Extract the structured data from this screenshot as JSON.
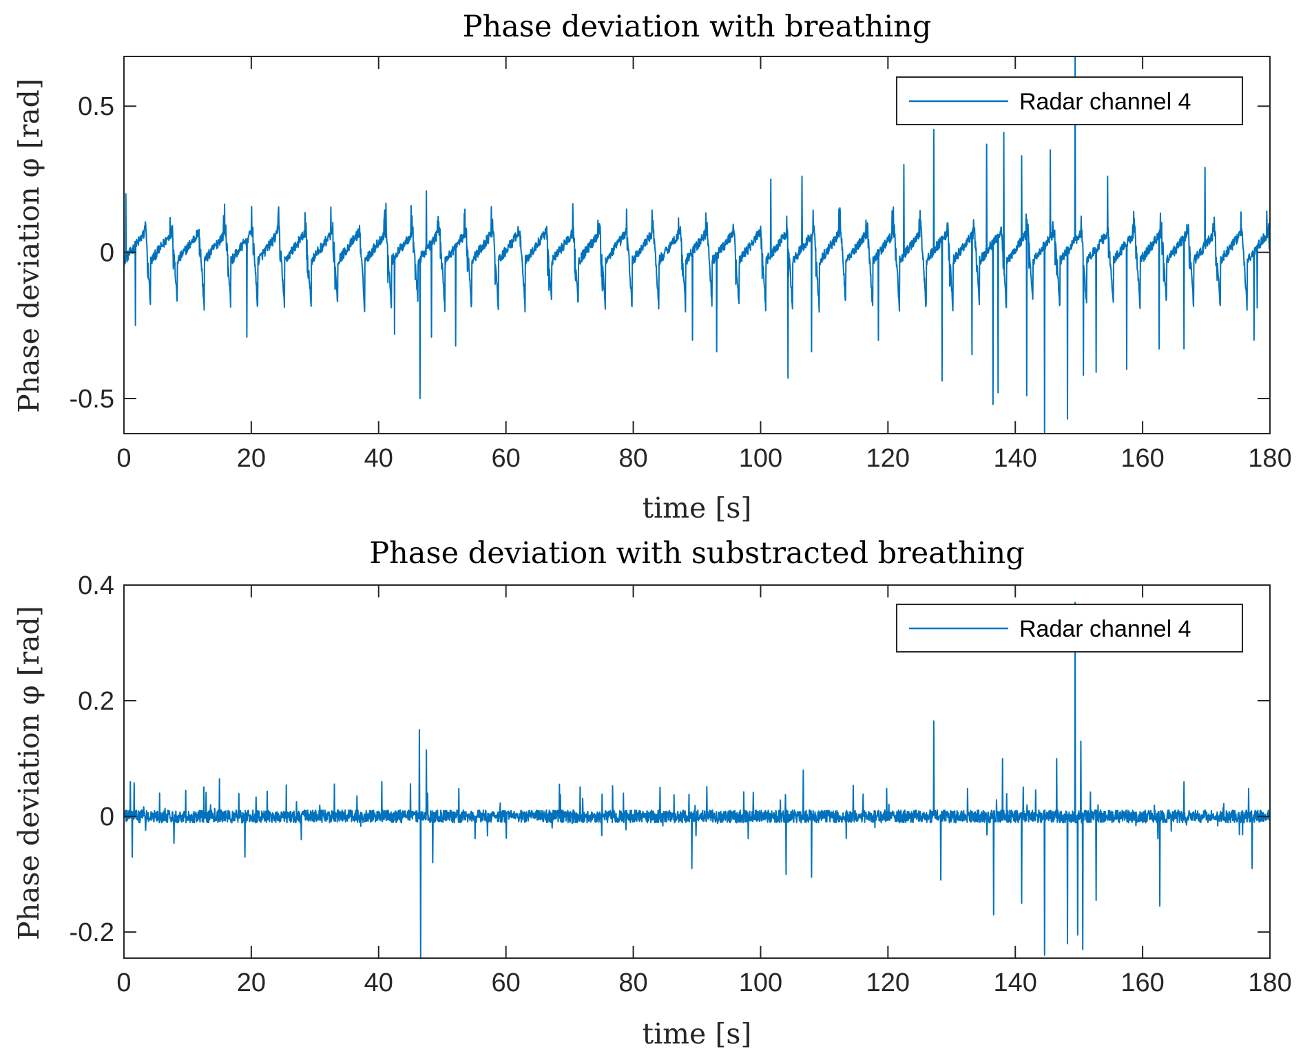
{
  "chart_data": [
    {
      "type": "line",
      "title": "Phase deviation with breathing",
      "xlabel": "time [s]",
      "ylabel": "Phase deviation φ [rad]",
      "xlim": [
        0,
        180
      ],
      "ylim": [
        -0.62,
        0.67
      ],
      "xticks": [
        0,
        20,
        40,
        60,
        80,
        100,
        120,
        140,
        160,
        180
      ],
      "xtick_labels": [
        "0",
        "20",
        "40",
        "60",
        "80",
        "100",
        "120",
        "140",
        "160",
        "180"
      ],
      "yticks": [
        -0.5,
        0,
        0.5
      ],
      "ytick_labels": [
        "-0.5",
        "0",
        "0.5"
      ],
      "grid": false,
      "legend_position": "top-right",
      "series": [
        {
          "name": "Radar channel 4",
          "color": "#0072BD",
          "cycle_period_s": 4.2,
          "breathing_amplitude_rad": 0.11,
          "spikes": [
            {
              "t": 0.3,
              "v": 0.2
            },
            {
              "t": 1.8,
              "v": -0.25
            },
            {
              "t": 19.3,
              "v": -0.29
            },
            {
              "t": 42.5,
              "v": -0.28
            },
            {
              "t": 46.5,
              "v": -0.5
            },
            {
              "t": 47.5,
              "v": 0.21
            },
            {
              "t": 48.3,
              "v": -0.29
            },
            {
              "t": 52.1,
              "v": -0.32
            },
            {
              "t": 89.3,
              "v": -0.3
            },
            {
              "t": 93.1,
              "v": -0.34
            },
            {
              "t": 101.6,
              "v": 0.25
            },
            {
              "t": 104.3,
              "v": -0.43
            },
            {
              "t": 106.5,
              "v": 0.26
            },
            {
              "t": 108.0,
              "v": -0.34
            },
            {
              "t": 118.5,
              "v": -0.3
            },
            {
              "t": 122.5,
              "v": 0.3
            },
            {
              "t": 127.2,
              "v": 0.42
            },
            {
              "t": 128.5,
              "v": -0.44
            },
            {
              "t": 133.2,
              "v": -0.35
            },
            {
              "t": 135.5,
              "v": 0.37
            },
            {
              "t": 136.5,
              "v": -0.52
            },
            {
              "t": 137.3,
              "v": -0.48
            },
            {
              "t": 138.2,
              "v": 0.41
            },
            {
              "t": 141.0,
              "v": 0.33
            },
            {
              "t": 141.8,
              "v": -0.49
            },
            {
              "t": 144.6,
              "v": -0.62
            },
            {
              "t": 145.5,
              "v": 0.35
            },
            {
              "t": 148.2,
              "v": -0.57
            },
            {
              "t": 149.4,
              "v": 0.67
            },
            {
              "t": 150.7,
              "v": -0.42
            },
            {
              "t": 152.7,
              "v": -0.41
            },
            {
              "t": 154.5,
              "v": 0.26
            },
            {
              "t": 157.5,
              "v": -0.4
            },
            {
              "t": 162.6,
              "v": -0.33
            },
            {
              "t": 166.5,
              "v": -0.33
            },
            {
              "t": 169.8,
              "v": 0.29
            },
            {
              "t": 177.5,
              "v": -0.3
            },
            {
              "t": 178.0,
              "v": -0.19
            }
          ]
        }
      ]
    },
    {
      "type": "line",
      "title": "Phase deviation with substracted breathing",
      "xlabel": "time [s]",
      "ylabel": "Phase deviation φ [rad]",
      "xlim": [
        0,
        180
      ],
      "ylim": [
        -0.245,
        0.4
      ],
      "xticks": [
        0,
        20,
        40,
        60,
        80,
        100,
        120,
        140,
        160,
        180
      ],
      "xtick_labels": [
        "0",
        "20",
        "40",
        "60",
        "80",
        "100",
        "120",
        "140",
        "160",
        "180"
      ],
      "yticks": [
        -0.2,
        0,
        0.2,
        0.4
      ],
      "ytick_labels": [
        "-0.2",
        "0",
        "0.2",
        "0.4"
      ],
      "grid": false,
      "legend_position": "top-right",
      "series": [
        {
          "name": "Radar channel 4",
          "color": "#0072BD",
          "cycle_period_s": 4.2,
          "breathing_amplitude_rad": 0.0,
          "spikes": [
            {
              "t": 1.0,
              "v": 0.06
            },
            {
              "t": 1.3,
              "v": -0.07
            },
            {
              "t": 15.0,
              "v": 0.065
            },
            {
              "t": 19.0,
              "v": -0.07
            },
            {
              "t": 40.5,
              "v": 0.06
            },
            {
              "t": 46.4,
              "v": 0.15
            },
            {
              "t": 46.6,
              "v": -0.245
            },
            {
              "t": 47.5,
              "v": 0.115
            },
            {
              "t": 48.5,
              "v": -0.08
            },
            {
              "t": 89.2,
              "v": -0.09
            },
            {
              "t": 104.0,
              "v": -0.1
            },
            {
              "t": 106.7,
              "v": 0.08
            },
            {
              "t": 108.0,
              "v": -0.105
            },
            {
              "t": 127.2,
              "v": 0.165
            },
            {
              "t": 128.3,
              "v": -0.11
            },
            {
              "t": 136.6,
              "v": -0.17
            },
            {
              "t": 138.0,
              "v": 0.1
            },
            {
              "t": 141.0,
              "v": -0.15
            },
            {
              "t": 144.6,
              "v": -0.24
            },
            {
              "t": 146.5,
              "v": 0.1
            },
            {
              "t": 148.2,
              "v": -0.22
            },
            {
              "t": 149.4,
              "v": 0.37
            },
            {
              "t": 149.8,
              "v": -0.205
            },
            {
              "t": 150.6,
              "v": -0.23
            },
            {
              "t": 150.3,
              "v": 0.13
            },
            {
              "t": 152.7,
              "v": -0.145
            },
            {
              "t": 162.7,
              "v": -0.155
            },
            {
              "t": 166.5,
              "v": 0.06
            },
            {
              "t": 177.2,
              "v": -0.09
            }
          ]
        }
      ]
    }
  ]
}
